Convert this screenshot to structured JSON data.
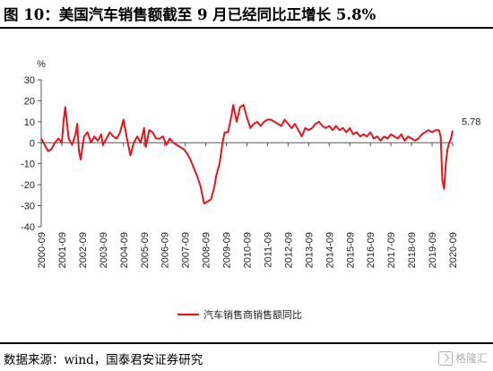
{
  "header": {
    "title": "图 10：美国汽车销售额截至 9 月已经同比正增长 5.8%"
  },
  "footer": {
    "source": "数据来源：wind，国泰君安证券研究",
    "watermark_text": "格隆汇",
    "watermark_icon": "logo-icon"
  },
  "chart_data": {
    "type": "line",
    "title": "",
    "xlabel": "",
    "ylabel": "%",
    "ylim": [
      -40,
      30
    ],
    "yticks": [
      30,
      20,
      10,
      0,
      -10,
      -20,
      -30,
      -40
    ],
    "x_start": "2000-09",
    "x_end": "2020-09",
    "xticks": [
      "2000-09",
      "2001-09",
      "2002-09",
      "2003-09",
      "2004-09",
      "2005-09",
      "2006-09",
      "2007-09",
      "2008-09",
      "2009-09",
      "2010-09",
      "2011-09",
      "2012-09",
      "2013-09",
      "2014-09",
      "2015-09",
      "2016-09",
      "2017-09",
      "2018-09",
      "2019-09",
      "2020-09"
    ],
    "grid": false,
    "legend_position": "bottom-center",
    "series": [
      {
        "name": "汽车销售商销售额同比",
        "color": "#e8141b",
        "last_label": "5.78",
        "points": [
          [
            "2000-09",
            2
          ],
          [
            "2000-11",
            -1
          ],
          [
            "2001-01",
            -4
          ],
          [
            "2001-03",
            -3
          ],
          [
            "2001-05",
            0
          ],
          [
            "2001-07",
            2
          ],
          [
            "2001-09",
            0
          ],
          [
            "2001-10",
            10
          ],
          [
            "2001-11",
            17
          ],
          [
            "2002-01",
            2
          ],
          [
            "2002-03",
            -1
          ],
          [
            "2002-05",
            4
          ],
          [
            "2002-06",
            9
          ],
          [
            "2002-07",
            -4
          ],
          [
            "2002-08",
            -8
          ],
          [
            "2002-10",
            3
          ],
          [
            "2002-12",
            5
          ],
          [
            "2003-02",
            0
          ],
          [
            "2003-04",
            3
          ],
          [
            "2003-06",
            1
          ],
          [
            "2003-08",
            4
          ],
          [
            "2003-09",
            -1
          ],
          [
            "2003-11",
            2
          ],
          [
            "2004-01",
            5
          ],
          [
            "2004-03",
            3
          ],
          [
            "2004-05",
            2
          ],
          [
            "2004-07",
            5
          ],
          [
            "2004-09",
            11
          ],
          [
            "2004-11",
            2
          ],
          [
            "2005-01",
            -6
          ],
          [
            "2005-03",
            0
          ],
          [
            "2005-05",
            3
          ],
          [
            "2005-07",
            0
          ],
          [
            "2005-09",
            7
          ],
          [
            "2005-10",
            -2
          ],
          [
            "2005-12",
            6
          ],
          [
            "2006-02",
            5
          ],
          [
            "2006-04",
            2
          ],
          [
            "2006-06",
            2
          ],
          [
            "2006-08",
            3
          ],
          [
            "2006-10",
            -1
          ],
          [
            "2006-12",
            2
          ],
          [
            "2007-02",
            0
          ],
          [
            "2007-04",
            -1
          ],
          [
            "2007-06",
            -2
          ],
          [
            "2007-08",
            -3
          ],
          [
            "2007-10",
            -5
          ],
          [
            "2007-12",
            -8
          ],
          [
            "2008-02",
            -12
          ],
          [
            "2008-04",
            -16
          ],
          [
            "2008-06",
            -21
          ],
          [
            "2008-08",
            -29
          ],
          [
            "2008-10",
            -28
          ],
          [
            "2008-12",
            -27
          ],
          [
            "2009-02",
            -21
          ],
          [
            "2009-03",
            -16
          ],
          [
            "2009-05",
            -10
          ],
          [
            "2009-07",
            1
          ],
          [
            "2009-08",
            5
          ],
          [
            "2009-10",
            5
          ],
          [
            "2009-12",
            13
          ],
          [
            "2010-01",
            18
          ],
          [
            "2010-03",
            10
          ],
          [
            "2010-05",
            17
          ],
          [
            "2010-07",
            18
          ],
          [
            "2010-09",
            12
          ],
          [
            "2010-11",
            7
          ],
          [
            "2011-01",
            9
          ],
          [
            "2011-03",
            10
          ],
          [
            "2011-05",
            8
          ],
          [
            "2011-07",
            10
          ],
          [
            "2011-09",
            11
          ],
          [
            "2011-11",
            11
          ],
          [
            "2012-01",
            10
          ],
          [
            "2012-03",
            9
          ],
          [
            "2012-05",
            8
          ],
          [
            "2012-07",
            11
          ],
          [
            "2012-09",
            9
          ],
          [
            "2012-11",
            7
          ],
          [
            "2013-01",
            9
          ],
          [
            "2013-03",
            6
          ],
          [
            "2013-05",
            3
          ],
          [
            "2013-07",
            7
          ],
          [
            "2013-09",
            6
          ],
          [
            "2013-11",
            7
          ],
          [
            "2014-01",
            9
          ],
          [
            "2014-03",
            10
          ],
          [
            "2014-05",
            8
          ],
          [
            "2014-07",
            7
          ],
          [
            "2014-09",
            8
          ],
          [
            "2014-11",
            6
          ],
          [
            "2015-01",
            8
          ],
          [
            "2015-03",
            6
          ],
          [
            "2015-05",
            7
          ],
          [
            "2015-07",
            5
          ],
          [
            "2015-09",
            7
          ],
          [
            "2015-11",
            4
          ],
          [
            "2016-01",
            5
          ],
          [
            "2016-03",
            3
          ],
          [
            "2016-05",
            4
          ],
          [
            "2016-07",
            3
          ],
          [
            "2016-09",
            5
          ],
          [
            "2016-11",
            2
          ],
          [
            "2017-01",
            3
          ],
          [
            "2017-03",
            1
          ],
          [
            "2017-05",
            3
          ],
          [
            "2017-07",
            2
          ],
          [
            "2017-09",
            4
          ],
          [
            "2017-11",
            3
          ],
          [
            "2018-01",
            2
          ],
          [
            "2018-03",
            4
          ],
          [
            "2018-05",
            1
          ],
          [
            "2018-07",
            3
          ],
          [
            "2018-09",
            2
          ],
          [
            "2018-11",
            1
          ],
          [
            "2019-01",
            2
          ],
          [
            "2019-03",
            4
          ],
          [
            "2019-05",
            5
          ],
          [
            "2019-07",
            6
          ],
          [
            "2019-09",
            5
          ],
          [
            "2019-11",
            6
          ],
          [
            "2020-01",
            6
          ],
          [
            "2020-02",
            3
          ],
          [
            "2020-03",
            -18
          ],
          [
            "2020-04",
            -22
          ],
          [
            "2020-05",
            -10
          ],
          [
            "2020-06",
            -3
          ],
          [
            "2020-07",
            0
          ],
          [
            "2020-08",
            2
          ],
          [
            "2020-09",
            5.78
          ]
        ]
      }
    ]
  }
}
